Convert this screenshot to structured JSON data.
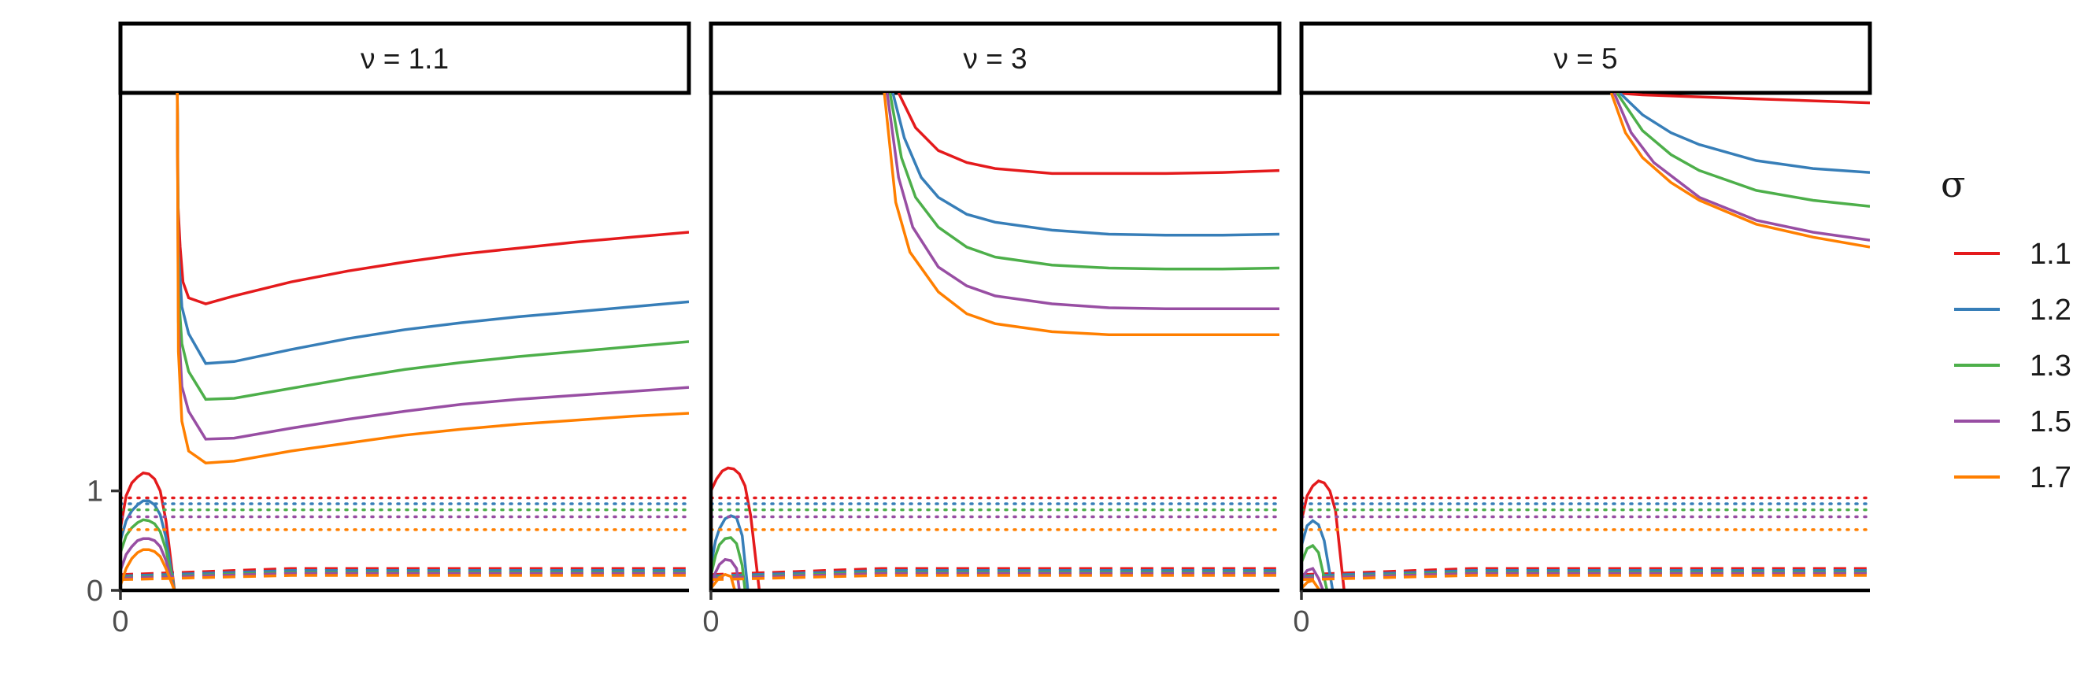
{
  "chart_data": {
    "type": "line",
    "facets": [
      {
        "label": "ν = 1.1",
        "nu": 1.1
      },
      {
        "label": "ν = 3",
        "nu": 3
      },
      {
        "label": "ν = 5",
        "nu": 5
      }
    ],
    "x_ticks": [
      "0"
    ],
    "y_ticks": [
      "0",
      "1"
    ],
    "ylim": [
      0,
      5
    ],
    "legend": {
      "title": "σ",
      "placement": "right",
      "items": [
        {
          "label": "1.1",
          "color": "#E41A1C"
        },
        {
          "label": "1.2",
          "color": "#377EB8"
        },
        {
          "label": "1.3",
          "color": "#4DAF4A"
        },
        {
          "label": "1.5",
          "color": "#984EA3"
        },
        {
          "label": "1.7",
          "color": "#FF7F00"
        }
      ]
    },
    "line_styles": [
      "solid",
      "dotted",
      "dashed"
    ],
    "series": [
      {
        "facet": 0,
        "sigma": "1.1",
        "color": "#E41A1C",
        "solid_low": [
          [
            0,
            0.62
          ],
          [
            1,
            0.95
          ],
          [
            2,
            1.08
          ],
          [
            3,
            1.14
          ],
          [
            4,
            1.18
          ],
          [
            5,
            1.17
          ],
          [
            6,
            1.12
          ],
          [
            7,
            1.0
          ],
          [
            8,
            0.7
          ],
          [
            9.5,
            0
          ]
        ],
        "solid_high": [
          [
            10,
            5.0
          ],
          [
            10.1,
            3.9
          ],
          [
            10.5,
            3.45
          ],
          [
            11,
            3.1
          ],
          [
            12,
            2.94
          ],
          [
            15,
            2.88
          ],
          [
            20,
            2.96
          ],
          [
            30,
            3.1
          ],
          [
            40,
            3.21
          ],
          [
            50,
            3.3
          ],
          [
            60,
            3.38
          ],
          [
            70,
            3.44
          ],
          [
            80,
            3.5
          ],
          [
            90,
            3.55
          ],
          [
            100,
            3.6
          ]
        ],
        "dotted": 0.93,
        "dashed": 0.22
      },
      {
        "facet": 0,
        "sigma": "1.2",
        "color": "#377EB8",
        "solid_low": [
          [
            0,
            0.5
          ],
          [
            1,
            0.7
          ],
          [
            2,
            0.8
          ],
          [
            3,
            0.86
          ],
          [
            4,
            0.9
          ],
          [
            5,
            0.9
          ],
          [
            6,
            0.86
          ],
          [
            7,
            0.76
          ],
          [
            8,
            0.53
          ],
          [
            9.5,
            0
          ]
        ],
        "solid_high": [
          [
            10,
            5.0
          ],
          [
            10.2,
            3.4
          ],
          [
            10.8,
            2.85
          ],
          [
            12,
            2.58
          ],
          [
            15,
            2.28
          ],
          [
            20,
            2.3
          ],
          [
            30,
            2.42
          ],
          [
            40,
            2.53
          ],
          [
            50,
            2.62
          ],
          [
            60,
            2.69
          ],
          [
            70,
            2.75
          ],
          [
            80,
            2.8
          ],
          [
            90,
            2.85
          ],
          [
            100,
            2.9
          ]
        ],
        "dotted": 0.87,
        "dashed": 0.2
      },
      {
        "facet": 0,
        "sigma": "1.3",
        "color": "#4DAF4A",
        "solid_low": [
          [
            0,
            0.38
          ],
          [
            1,
            0.55
          ],
          [
            2,
            0.63
          ],
          [
            3,
            0.68
          ],
          [
            4,
            0.71
          ],
          [
            5,
            0.7
          ],
          [
            6,
            0.67
          ],
          [
            7,
            0.59
          ],
          [
            8,
            0.41
          ],
          [
            9.5,
            0
          ]
        ],
        "solid_high": [
          [
            10,
            5.0
          ],
          [
            10.2,
            3.0
          ],
          [
            10.8,
            2.48
          ],
          [
            12,
            2.2
          ],
          [
            15,
            1.92
          ],
          [
            20,
            1.93
          ],
          [
            30,
            2.03
          ],
          [
            40,
            2.13
          ],
          [
            50,
            2.22
          ],
          [
            60,
            2.29
          ],
          [
            70,
            2.35
          ],
          [
            80,
            2.4
          ],
          [
            90,
            2.45
          ],
          [
            100,
            2.5
          ]
        ],
        "dotted": 0.81,
        "dashed": 0.18
      },
      {
        "facet": 0,
        "sigma": "1.5",
        "color": "#984EA3",
        "solid_low": [
          [
            0,
            0.2
          ],
          [
            1,
            0.36
          ],
          [
            2,
            0.44
          ],
          [
            3,
            0.5
          ],
          [
            4,
            0.52
          ],
          [
            5,
            0.52
          ],
          [
            6,
            0.5
          ],
          [
            7,
            0.44
          ],
          [
            8,
            0.3
          ],
          [
            9.5,
            0
          ]
        ],
        "solid_high": [
          [
            10,
            5.0
          ],
          [
            10.2,
            2.7
          ],
          [
            10.8,
            2.05
          ],
          [
            12,
            1.8
          ],
          [
            15,
            1.52
          ],
          [
            20,
            1.53
          ],
          [
            30,
            1.63
          ],
          [
            40,
            1.72
          ],
          [
            50,
            1.8
          ],
          [
            60,
            1.87
          ],
          [
            70,
            1.92
          ],
          [
            80,
            1.96
          ],
          [
            90,
            2.0
          ],
          [
            100,
            2.04
          ]
        ],
        "dotted": 0.74,
        "dashed": 0.17
      },
      {
        "facet": 0,
        "sigma": "1.7",
        "color": "#FF7F00",
        "solid_low": [
          [
            0,
            0.05
          ],
          [
            1,
            0.22
          ],
          [
            2,
            0.32
          ],
          [
            3,
            0.38
          ],
          [
            4,
            0.41
          ],
          [
            5,
            0.41
          ],
          [
            6,
            0.39
          ],
          [
            7,
            0.34
          ],
          [
            8,
            0.22
          ],
          [
            9.5,
            0
          ]
        ],
        "solid_high": [
          [
            10,
            5.0
          ],
          [
            10.2,
            2.4
          ],
          [
            10.8,
            1.7
          ],
          [
            12,
            1.4
          ],
          [
            15,
            1.28
          ],
          [
            20,
            1.3
          ],
          [
            30,
            1.4
          ],
          [
            40,
            1.48
          ],
          [
            50,
            1.56
          ],
          [
            60,
            1.62
          ],
          [
            70,
            1.67
          ],
          [
            80,
            1.71
          ],
          [
            90,
            1.75
          ],
          [
            100,
            1.78
          ]
        ],
        "dotted": 0.61,
        "dashed": 0.15
      },
      {
        "facet": 1,
        "sigma": "1.1",
        "color": "#E41A1C",
        "solid_low": [
          [
            0,
            1.0
          ],
          [
            1,
            1.12
          ],
          [
            2,
            1.2
          ],
          [
            3,
            1.23
          ],
          [
            4,
            1.22
          ],
          [
            5,
            1.17
          ],
          [
            6,
            1.05
          ],
          [
            7,
            0.75
          ],
          [
            8.5,
            0
          ]
        ],
        "solid_high": [
          [
            33,
            5.0
          ],
          [
            36,
            4.65
          ],
          [
            40,
            4.42
          ],
          [
            45,
            4.3
          ],
          [
            50,
            4.24
          ],
          [
            60,
            4.19
          ],
          [
            70,
            4.19
          ],
          [
            80,
            4.19
          ],
          [
            90,
            4.2
          ],
          [
            100,
            4.22
          ]
        ],
        "dotted": 0.93,
        "dashed": 0.22
      },
      {
        "facet": 1,
        "sigma": "1.2",
        "color": "#377EB8",
        "solid_low": [
          [
            0,
            0.25
          ],
          [
            0.8,
            0.5
          ],
          [
            1.5,
            0.62
          ],
          [
            2.5,
            0.72
          ],
          [
            3.5,
            0.75
          ],
          [
            4.5,
            0.73
          ],
          [
            5.5,
            0.55
          ],
          [
            6.5,
            0
          ]
        ],
        "solid_high": [
          [
            32,
            5.0
          ],
          [
            34,
            4.55
          ],
          [
            37,
            4.15
          ],
          [
            40,
            3.95
          ],
          [
            45,
            3.78
          ],
          [
            50,
            3.7
          ],
          [
            60,
            3.62
          ],
          [
            70,
            3.58
          ],
          [
            80,
            3.57
          ],
          [
            90,
            3.57
          ],
          [
            100,
            3.58
          ]
        ],
        "dotted": 0.87,
        "dashed": 0.2
      },
      {
        "facet": 1,
        "sigma": "1.3",
        "color": "#4DAF4A",
        "solid_low": [
          [
            0,
            0.15
          ],
          [
            0.8,
            0.35
          ],
          [
            1.5,
            0.46
          ],
          [
            2.5,
            0.52
          ],
          [
            3.5,
            0.53
          ],
          [
            4.5,
            0.47
          ],
          [
            5.5,
            0.25
          ],
          [
            6,
            0
          ]
        ],
        "solid_high": [
          [
            31.5,
            5.0
          ],
          [
            33.5,
            4.35
          ],
          [
            36,
            3.95
          ],
          [
            40,
            3.65
          ],
          [
            45,
            3.45
          ],
          [
            50,
            3.35
          ],
          [
            60,
            3.27
          ],
          [
            70,
            3.24
          ],
          [
            80,
            3.23
          ],
          [
            90,
            3.23
          ],
          [
            100,
            3.24
          ]
        ],
        "dotted": 0.81,
        "dashed": 0.18
      },
      {
        "facet": 1,
        "sigma": "1.5",
        "color": "#984EA3",
        "solid_low": [
          [
            0,
            0.05
          ],
          [
            0.8,
            0.18
          ],
          [
            1.5,
            0.26
          ],
          [
            2.5,
            0.31
          ],
          [
            3.5,
            0.3
          ],
          [
            4.5,
            0.22
          ],
          [
            5,
            0
          ]
        ],
        "solid_high": [
          [
            31,
            5.0
          ],
          [
            33,
            4.15
          ],
          [
            35.5,
            3.65
          ],
          [
            40,
            3.25
          ],
          [
            45,
            3.06
          ],
          [
            50,
            2.96
          ],
          [
            60,
            2.88
          ],
          [
            70,
            2.84
          ],
          [
            80,
            2.83
          ],
          [
            90,
            2.83
          ],
          [
            100,
            2.83
          ]
        ],
        "dotted": 0.74,
        "dashed": 0.17
      },
      {
        "facet": 1,
        "sigma": "1.7",
        "color": "#FF7F00",
        "solid_low": [
          [
            0,
            0.02
          ],
          [
            0.8,
            0.08
          ],
          [
            1.5,
            0.13
          ],
          [
            2.5,
            0.16
          ],
          [
            3.5,
            0.14
          ],
          [
            4.2,
            0
          ]
        ],
        "solid_high": [
          [
            30.5,
            5.0
          ],
          [
            32.5,
            3.9
          ],
          [
            35,
            3.4
          ],
          [
            40,
            3.0
          ],
          [
            45,
            2.78
          ],
          [
            50,
            2.68
          ],
          [
            60,
            2.6
          ],
          [
            70,
            2.57
          ],
          [
            80,
            2.57
          ],
          [
            90,
            2.57
          ],
          [
            100,
            2.57
          ]
        ],
        "dotted": 0.61,
        "dashed": 0.15
      },
      {
        "facet": 2,
        "sigma": "1.1",
        "color": "#E41A1C",
        "solid_low": [
          [
            0,
            0.7
          ],
          [
            1,
            0.95
          ],
          [
            2,
            1.05
          ],
          [
            3,
            1.1
          ],
          [
            4,
            1.08
          ],
          [
            5,
            1.0
          ],
          [
            6,
            0.8
          ],
          [
            7.5,
            0
          ]
        ],
        "solid_high": [
          [
            55,
            5.0
          ],
          [
            60,
            4.98
          ],
          [
            70,
            4.96
          ],
          [
            80,
            4.94
          ],
          [
            90,
            4.92
          ],
          [
            100,
            4.9
          ]
        ],
        "dotted": 0.93,
        "dashed": 0.22
      },
      {
        "facet": 2,
        "sigma": "1.2",
        "color": "#377EB8",
        "solid_low": [
          [
            0,
            0.45
          ],
          [
            1,
            0.65
          ],
          [
            2,
            0.7
          ],
          [
            3,
            0.66
          ],
          [
            4,
            0.5
          ],
          [
            5.5,
            0
          ]
        ],
        "solid_high": [
          [
            56,
            5.0
          ],
          [
            60,
            4.78
          ],
          [
            65,
            4.6
          ],
          [
            70,
            4.48
          ],
          [
            80,
            4.32
          ],
          [
            90,
            4.24
          ],
          [
            100,
            4.2
          ]
        ],
        "dotted": 0.87,
        "dashed": 0.2
      },
      {
        "facet": 2,
        "sigma": "1.3",
        "color": "#4DAF4A",
        "solid_low": [
          [
            0,
            0.28
          ],
          [
            1,
            0.42
          ],
          [
            2,
            0.45
          ],
          [
            3,
            0.38
          ],
          [
            4.5,
            0
          ]
        ],
        "solid_high": [
          [
            55.5,
            5.0
          ],
          [
            60,
            4.62
          ],
          [
            65,
            4.38
          ],
          [
            70,
            4.22
          ],
          [
            80,
            4.02
          ],
          [
            90,
            3.92
          ],
          [
            100,
            3.86
          ]
        ],
        "dotted": 0.81,
        "dashed": 0.18
      },
      {
        "facet": 2,
        "sigma": "1.5",
        "color": "#984EA3",
        "solid_low": [
          [
            0,
            0.12
          ],
          [
            1,
            0.2
          ],
          [
            2,
            0.22
          ],
          [
            3,
            0.12
          ],
          [
            3.8,
            0
          ]
        ],
        "solid_high": [
          [
            55,
            5.0
          ],
          [
            58,
            4.6
          ],
          [
            62,
            4.3
          ],
          [
            70,
            3.95
          ],
          [
            80,
            3.72
          ],
          [
            90,
            3.6
          ],
          [
            100,
            3.52
          ]
        ],
        "dotted": 0.74,
        "dashed": 0.17
      },
      {
        "facet": 2,
        "sigma": "1.7",
        "color": "#FF7F00",
        "solid_low": [
          [
            0,
            0.02
          ],
          [
            1,
            0.08
          ],
          [
            2,
            0.1
          ],
          [
            3.2,
            0
          ]
        ],
        "solid_high": [
          [
            54.5,
            5.0
          ],
          [
            57,
            4.6
          ],
          [
            60,
            4.35
          ],
          [
            65,
            4.1
          ],
          [
            70,
            3.92
          ],
          [
            80,
            3.68
          ],
          [
            90,
            3.55
          ],
          [
            100,
            3.45
          ]
        ],
        "dotted": 0.61,
        "dashed": 0.15
      }
    ]
  }
}
